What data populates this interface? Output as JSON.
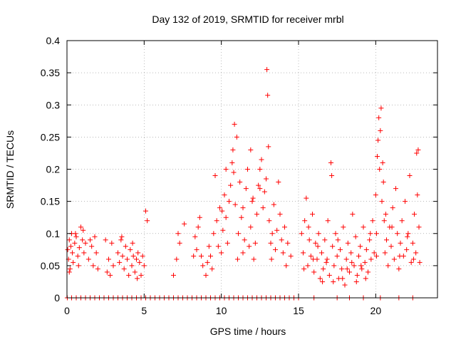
{
  "chart_data": {
    "type": "scatter",
    "title": "Day 132 of 2019, SRMTID for receiver mrbl",
    "xlabel": "GPS time / hours",
    "ylabel": "SRMTID / TECUs",
    "xlim": [
      0,
      24
    ],
    "ylim": [
      0,
      0.4
    ],
    "x_ticks": [
      0,
      5,
      10,
      15,
      20
    ],
    "x_tick_labels": [
      "0",
      "5",
      "10",
      "15",
      "20"
    ],
    "y_ticks": [
      0,
      0.05,
      0.1,
      0.15,
      0.2,
      0.25,
      0.3,
      0.35,
      0.4
    ],
    "y_tick_labels": [
      "0",
      "0.05",
      "0.1",
      "0.15",
      "0.2",
      "0.25",
      "0.3",
      "0.35",
      "0.4"
    ],
    "grid": true,
    "marker": "plus",
    "series_color": "#ff0000",
    "series": [
      {
        "name": "SRMTID",
        "points": [
          [
            0.05,
            0.075
          ],
          [
            0.1,
            0.06
          ],
          [
            0.15,
            0.09
          ],
          [
            0.2,
            0.045
          ],
          [
            0.25,
            0.08
          ],
          [
            0.3,
            0.1
          ],
          [
            0.35,
            0.07
          ],
          [
            0.4,
            0.055
          ],
          [
            0.5,
            0.085
          ],
          [
            0.6,
            0.095
          ],
          [
            0.7,
            0.065
          ],
          [
            0.8,
            0.078
          ],
          [
            0.9,
            0.11
          ],
          [
            1.0,
            0.09
          ],
          [
            1.1,
            0.07
          ],
          [
            1.2,
            0.085
          ],
          [
            1.4,
            0.06
          ],
          [
            1.5,
            0.09
          ],
          [
            1.6,
            0.08
          ],
          [
            1.7,
            0.05
          ],
          [
            1.8,
            0.095
          ],
          [
            1.9,
            0.07
          ],
          [
            2.0,
            0.045
          ],
          [
            0.15,
            0.04
          ],
          [
            0.55,
            0.1
          ],
          [
            0.75,
            0.05
          ],
          [
            1.05,
            0.105
          ],
          [
            2.5,
            0.09
          ],
          [
            2.6,
            0.04
          ],
          [
            2.7,
            0.06
          ],
          [
            2.8,
            0.035
          ],
          [
            2.9,
            0.085
          ],
          [
            3.0,
            0.05
          ],
          [
            3.3,
            0.07
          ],
          [
            3.4,
            0.055
          ],
          [
            3.5,
            0.09
          ],
          [
            3.6,
            0.065
          ],
          [
            3.7,
            0.045
          ],
          [
            3.8,
            0.08
          ],
          [
            3.9,
            0.06
          ],
          [
            4.0,
            0.035
          ],
          [
            4.1,
            0.075
          ],
          [
            4.2,
            0.05
          ],
          [
            4.3,
            0.065
          ],
          [
            4.4,
            0.04
          ],
          [
            4.5,
            0.06
          ],
          [
            4.6,
            0.07
          ],
          [
            4.7,
            0.055
          ],
          [
            4.8,
            0.035
          ],
          [
            4.9,
            0.065
          ],
          [
            5.0,
            0.05
          ],
          [
            3.55,
            0.095
          ],
          [
            4.25,
            0.085
          ],
          [
            4.55,
            0.03
          ],
          [
            5.1,
            0.135
          ],
          [
            5.2,
            0.12
          ],
          [
            6.9,
            0.035
          ],
          [
            7.1,
            0.06
          ],
          [
            7.2,
            0.1
          ],
          [
            7.3,
            0.085
          ],
          [
            7.6,
            0.115
          ],
          [
            8.2,
            0.065
          ],
          [
            8.3,
            0.095
          ],
          [
            8.4,
            0.075
          ],
          [
            8.5,
            0.11
          ],
          [
            8.6,
            0.125
          ],
          [
            8.7,
            0.065
          ],
          [
            8.8,
            0.05
          ],
          [
            9.0,
            0.035
          ],
          [
            9.1,
            0.055
          ],
          [
            9.2,
            0.08
          ],
          [
            9.3,
            0.065
          ],
          [
            9.4,
            0.045
          ],
          [
            9.5,
            0.1
          ],
          [
            9.6,
            0.19
          ],
          [
            9.7,
            0.12
          ],
          [
            9.8,
            0.08
          ],
          [
            9.9,
            0.14
          ],
          [
            10.0,
            0.07
          ],
          [
            10.1,
            0.105
          ],
          [
            10.2,
            0.16
          ],
          [
            10.3,
            0.125
          ],
          [
            10.4,
            0.085
          ],
          [
            10.5,
            0.15
          ],
          [
            10.6,
            0.175
          ],
          [
            10.7,
            0.21
          ],
          [
            10.75,
            0.23
          ],
          [
            10.8,
            0.195
          ],
          [
            10.85,
            0.27
          ],
          [
            10.9,
            0.145
          ],
          [
            11.0,
            0.25
          ],
          [
            11.05,
            0.06
          ],
          [
            11.1,
            0.1
          ],
          [
            11.2,
            0.18
          ],
          [
            11.3,
            0.125
          ],
          [
            11.4,
            0.14
          ],
          [
            11.5,
            0.09
          ],
          [
            11.6,
            0.17
          ],
          [
            11.7,
            0.2
          ],
          [
            11.8,
            0.08
          ],
          [
            11.9,
            0.11
          ],
          [
            12.0,
            0.15
          ],
          [
            12.1,
            0.06
          ],
          [
            12.2,
            0.085
          ],
          [
            12.3,
            0.13
          ],
          [
            12.4,
            0.175
          ],
          [
            12.5,
            0.2
          ],
          [
            12.6,
            0.215
          ],
          [
            12.7,
            0.14
          ],
          [
            12.8,
            0.165
          ],
          [
            12.9,
            0.185
          ],
          [
            12.95,
            0.355
          ],
          [
            13.0,
            0.315
          ],
          [
            13.05,
            0.235
          ],
          [
            13.1,
            0.12
          ],
          [
            13.2,
            0.085
          ],
          [
            13.3,
            0.1
          ],
          [
            13.4,
            0.145
          ],
          [
            13.5,
            0.075
          ],
          [
            13.6,
            0.105
          ],
          [
            13.7,
            0.18
          ],
          [
            13.8,
            0.13
          ],
          [
            13.9,
            0.09
          ],
          [
            14.0,
            0.07
          ],
          [
            14.1,
            0.11
          ],
          [
            14.2,
            0.05
          ],
          [
            14.3,
            0.085
          ],
          [
            14.5,
            0.065
          ],
          [
            10.3,
            0.2
          ],
          [
            11.9,
            0.23
          ],
          [
            12.5,
            0.17
          ],
          [
            10.05,
            0.135
          ],
          [
            11.4,
            0.07
          ],
          [
            12.05,
            0.155
          ],
          [
            13.25,
            0.06
          ],
          [
            15.2,
            0.1
          ],
          [
            15.3,
            0.07
          ],
          [
            15.4,
            0.12
          ],
          [
            15.5,
            0.155
          ],
          [
            15.6,
            0.05
          ],
          [
            15.7,
            0.09
          ],
          [
            15.8,
            0.065
          ],
          [
            15.9,
            0.13
          ],
          [
            16.0,
            0.04
          ],
          [
            16.1,
            0.085
          ],
          [
            16.2,
            0.06
          ],
          [
            16.3,
            0.1
          ],
          [
            16.4,
            0.03
          ],
          [
            16.5,
            0.07
          ],
          [
            16.6,
            0.045
          ],
          [
            16.7,
            0.09
          ],
          [
            16.8,
            0.055
          ],
          [
            16.9,
            0.12
          ],
          [
            17.0,
            0.035
          ],
          [
            17.1,
            0.21
          ],
          [
            17.15,
            0.19
          ],
          [
            17.2,
            0.08
          ],
          [
            17.3,
            0.05
          ],
          [
            17.4,
            0.1
          ],
          [
            17.5,
            0.065
          ],
          [
            17.6,
            0.03
          ],
          [
            17.7,
            0.075
          ],
          [
            17.8,
            0.045
          ],
          [
            17.9,
            0.11
          ],
          [
            18.0,
            0.02
          ],
          [
            18.1,
            0.06
          ],
          [
            18.2,
            0.085
          ],
          [
            18.3,
            0.04
          ],
          [
            18.4,
            0.07
          ],
          [
            18.5,
            0.13
          ],
          [
            18.6,
            0.05
          ],
          [
            18.7,
            0.095
          ],
          [
            18.8,
            0.035
          ],
          [
            18.9,
            0.065
          ],
          [
            19.0,
            0.08
          ],
          [
            19.1,
            0.045
          ],
          [
            19.2,
            0.11
          ],
          [
            19.3,
            0.055
          ],
          [
            19.4,
            0.075
          ],
          [
            19.5,
            0.04
          ],
          [
            19.6,
            0.09
          ],
          [
            19.7,
            0.06
          ],
          [
            19.8,
            0.12
          ],
          [
            19.9,
            0.07
          ],
          [
            15.35,
            0.045
          ],
          [
            15.65,
            0.11
          ],
          [
            15.95,
            0.06
          ],
          [
            16.25,
            0.08
          ],
          [
            16.55,
            0.025
          ],
          [
            16.85,
            0.06
          ],
          [
            17.25,
            0.025
          ],
          [
            17.55,
            0.09
          ],
          [
            17.85,
            0.03
          ],
          [
            18.15,
            0.045
          ],
          [
            18.45,
            0.055
          ],
          [
            18.75,
            0.025
          ],
          [
            19.05,
            0.05
          ],
          [
            19.35,
            0.03
          ],
          [
            19.65,
            0.1
          ],
          [
            20.0,
            0.16
          ],
          [
            20.05,
            0.1
          ],
          [
            20.1,
            0.22
          ],
          [
            20.15,
            0.245
          ],
          [
            20.2,
            0.28
          ],
          [
            20.25,
            0.2
          ],
          [
            20.3,
            0.26
          ],
          [
            20.35,
            0.295
          ],
          [
            20.4,
            0.15
          ],
          [
            20.45,
            0.21
          ],
          [
            20.5,
            0.18
          ],
          [
            20.55,
            0.12
          ],
          [
            20.6,
            0.07
          ],
          [
            20.7,
            0.09
          ],
          [
            20.8,
            0.05
          ],
          [
            20.9,
            0.11
          ],
          [
            21.0,
            0.08
          ],
          [
            21.1,
            0.14
          ],
          [
            21.2,
            0.06
          ],
          [
            21.3,
            0.17
          ],
          [
            21.4,
            0.1
          ],
          [
            21.5,
            0.045
          ],
          [
            21.6,
            0.085
          ],
          [
            21.7,
            0.12
          ],
          [
            21.8,
            0.065
          ],
          [
            21.9,
            0.15
          ],
          [
            22.0,
            0.075
          ],
          [
            22.1,
            0.1
          ],
          [
            22.2,
            0.19
          ],
          [
            22.3,
            0.055
          ],
          [
            22.4,
            0.085
          ],
          [
            22.5,
            0.13
          ],
          [
            22.6,
            0.07
          ],
          [
            22.65,
            0.225
          ],
          [
            22.7,
            0.16
          ],
          [
            22.75,
            0.23
          ],
          [
            22.8,
            0.11
          ],
          [
            22.85,
            0.055
          ],
          [
            20.05,
            0.065
          ],
          [
            20.65,
            0.13
          ],
          [
            21.05,
            0.11
          ],
          [
            21.55,
            0.065
          ],
          [
            22.05,
            0.095
          ],
          [
            22.45,
            0.06
          ],
          [
            0.02,
            0.0
          ],
          [
            0.3,
            0.0
          ],
          [
            0.6,
            0.0
          ],
          [
            0.9,
            0.0
          ],
          [
            1.2,
            0.0
          ],
          [
            1.5,
            0.0
          ],
          [
            1.8,
            0.0
          ],
          [
            2.1,
            0.0
          ],
          [
            2.4,
            0.0
          ],
          [
            2.7,
            0.0
          ],
          [
            3.0,
            0.0
          ],
          [
            3.3,
            0.0
          ],
          [
            3.6,
            0.0
          ],
          [
            3.9,
            0.0
          ],
          [
            4.2,
            0.0
          ],
          [
            4.5,
            0.0
          ],
          [
            4.8,
            0.0
          ],
          [
            5.1,
            0.0
          ],
          [
            5.4,
            0.0
          ],
          [
            5.7,
            0.0
          ],
          [
            6.0,
            0.0
          ],
          [
            6.3,
            0.0
          ],
          [
            6.6,
            0.0
          ],
          [
            6.9,
            0.0
          ],
          [
            7.2,
            0.0
          ],
          [
            7.5,
            0.0
          ],
          [
            7.8,
            0.0
          ],
          [
            8.1,
            0.0
          ],
          [
            8.4,
            0.0
          ],
          [
            8.7,
            0.0
          ],
          [
            9.0,
            0.0
          ],
          [
            9.3,
            0.0
          ],
          [
            9.6,
            0.0
          ],
          [
            9.9,
            0.0
          ],
          [
            10.2,
            0.0
          ],
          [
            10.5,
            0.0
          ],
          [
            10.8,
            0.0
          ],
          [
            11.1,
            0.0
          ],
          [
            11.4,
            0.0
          ],
          [
            11.7,
            0.0
          ],
          [
            12.0,
            0.0
          ],
          [
            12.3,
            0.0
          ],
          [
            12.6,
            0.0
          ],
          [
            12.9,
            0.0
          ],
          [
            13.2,
            0.0
          ],
          [
            13.5,
            0.0
          ],
          [
            13.8,
            0.0
          ],
          [
            14.1,
            0.0
          ],
          [
            14.4,
            0.0
          ],
          [
            14.7,
            0.0
          ],
          [
            15.0,
            0.0
          ],
          [
            16.0,
            0.0
          ],
          [
            17.5,
            0.0
          ],
          [
            18.3,
            0.0
          ],
          [
            19.2,
            0.0
          ],
          [
            20.3,
            0.0
          ],
          [
            21.5,
            0.0
          ],
          [
            22.4,
            0.0
          ]
        ]
      }
    ]
  }
}
